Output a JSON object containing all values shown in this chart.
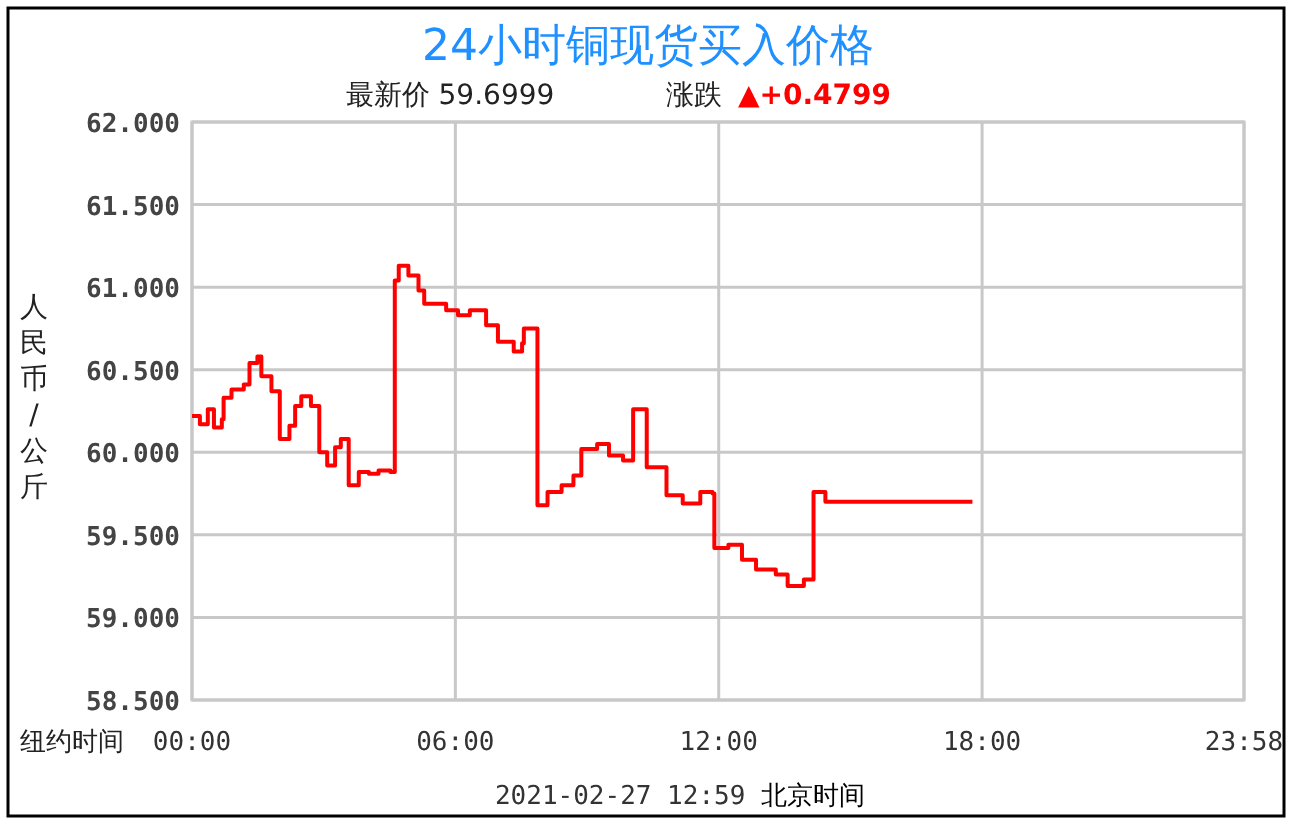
{
  "chart_data": {
    "type": "step",
    "title": "24小时铜现货买入价格",
    "subtitle": "最新价 59.6999",
    "ylabel": "人民币/公斤",
    "annotations": [
      "涨跌",
      "▲+0.4799",
      "纽约时间",
      "2021-02-27 12:59 北京时间"
    ],
    "x": [
      0.0,
      0.18,
      0.36,
      0.5,
      0.68,
      0.72,
      0.9,
      1.18,
      1.31,
      1.49,
      1.58,
      1.81,
      2.0,
      2.22,
      2.35,
      2.49,
      2.71,
      2.9,
      3.08,
      3.26,
      3.39,
      3.57,
      3.8,
      4.03,
      4.25,
      4.52,
      4.62,
      4.71,
      4.93,
      5.16,
      5.29,
      5.79,
      6.06,
      6.33,
      6.7,
      6.97,
      7.33,
      7.52,
      7.56,
      7.83,
      7.87,
      8.1,
      8.42,
      8.69,
      8.87,
      9.23,
      9.5,
      9.82,
      10.05,
      10.27,
      10.36,
      10.81,
      11.18,
      11.58,
      11.86,
      11.9,
      12.22,
      12.53,
      12.85,
      13.3,
      13.57,
      13.94,
      14.16,
      14.43,
      17.78
    ],
    "series": [
      {
        "color": "#ff0000",
        "values": [
          60.22,
          60.17,
          60.26,
          60.15,
          60.2,
          60.33,
          60.38,
          60.41,
          60.54,
          60.58,
          60.46,
          60.37,
          60.08,
          60.16,
          60.28,
          60.34,
          60.28,
          60.0,
          59.92,
          60.03,
          60.08,
          59.8,
          59.88,
          59.87,
          59.89,
          59.88,
          61.04,
          61.13,
          61.07,
          60.98,
          60.9,
          60.86,
          60.83,
          60.86,
          60.77,
          60.67,
          60.61,
          60.66,
          60.75,
          60.75,
          59.68,
          59.76,
          59.8,
          59.86,
          60.02,
          60.05,
          59.98,
          59.95,
          60.26,
          60.26,
          59.91,
          59.74,
          59.69,
          59.76,
          59.75,
          59.42,
          59.44,
          59.35,
          59.29,
          59.26,
          59.19,
          59.23,
          59.76,
          59.7,
          59.7
        ]
      }
    ],
    "xlim": [
      0,
      23.967
    ],
    "xticks": [
      {
        "value": 0,
        "label": "00:00"
      },
      {
        "value": 6,
        "label": "06:00"
      },
      {
        "value": 12,
        "label": "12:00"
      },
      {
        "value": 18,
        "label": "18:00"
      },
      {
        "value": 23.967,
        "label": "23:58"
      }
    ],
    "ylim": [
      58.5,
      62
    ],
    "yticks": [
      {
        "value": 58.5,
        "label": "58.500"
      },
      {
        "value": 59,
        "label": "59.000"
      },
      {
        "value": 59.5,
        "label": "59.500"
      },
      {
        "value": 60,
        "label": "60.000"
      },
      {
        "value": 60.5,
        "label": "60.500"
      },
      {
        "value": 61,
        "label": "61.000"
      },
      {
        "value": 61.5,
        "label": "61.500"
      },
      {
        "value": 62,
        "label": "62.000"
      }
    ],
    "grid": true
  }
}
